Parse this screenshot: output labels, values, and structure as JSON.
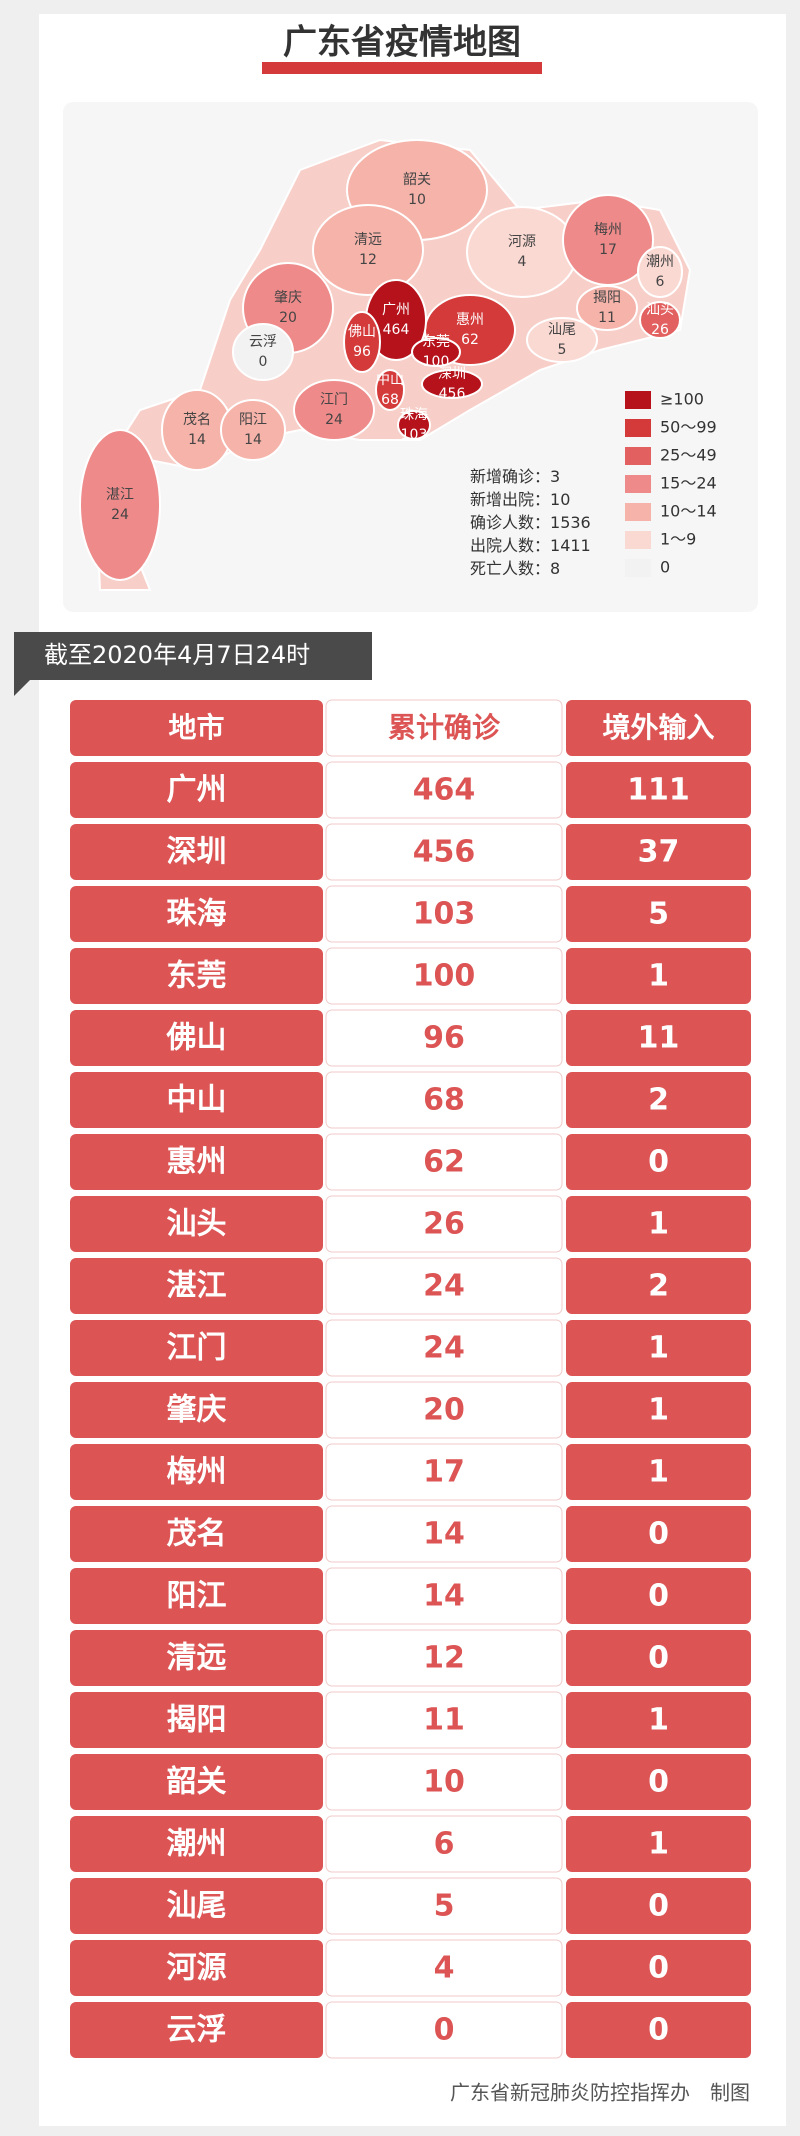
{
  "title": "广东省疫情地图",
  "map": {
    "regions": [
      {
        "name": "韶关",
        "value": 10,
        "color": "#f5b3aa"
      },
      {
        "name": "清远",
        "value": 12,
        "color": "#f5b3aa"
      },
      {
        "name": "河源",
        "value": 4,
        "color": "#fbd9d3"
      },
      {
        "name": "梅州",
        "value": 17,
        "color": "#ee8a8a"
      },
      {
        "name": "潮州",
        "value": 6,
        "color": "#fbd9d3"
      },
      {
        "name": "揭阳",
        "value": 11,
        "color": "#f5b3aa"
      },
      {
        "name": "汕头",
        "value": 26,
        "color": "#e36060"
      },
      {
        "name": "汕尾",
        "value": 5,
        "color": "#fbd9d3"
      },
      {
        "name": "惠州",
        "value": 62,
        "color": "#d43a3a"
      },
      {
        "name": "广州",
        "value": 464,
        "color": "#b5121b"
      },
      {
        "name": "东莞",
        "value": 100,
        "color": "#b5121b"
      },
      {
        "name": "深圳",
        "value": 456,
        "color": "#b5121b"
      },
      {
        "name": "佛山",
        "value": 96,
        "color": "#d43a3a"
      },
      {
        "name": "中山",
        "value": 68,
        "color": "#d43a3a"
      },
      {
        "name": "珠海",
        "value": 103,
        "color": "#b5121b"
      },
      {
        "name": "江门",
        "value": 24,
        "color": "#ee8a8a"
      },
      {
        "name": "肇庆",
        "value": 20,
        "color": "#ee8a8a"
      },
      {
        "name": "云浮",
        "value": 0,
        "color": "#f2f2f2"
      },
      {
        "name": "茂名",
        "value": 14,
        "color": "#f5b3aa"
      },
      {
        "name": "阳江",
        "value": 14,
        "color": "#f5b3aa"
      },
      {
        "name": "湛江",
        "value": 24,
        "color": "#ee8a8a"
      }
    ],
    "legend": [
      {
        "label": "≥100",
        "color": "#b5121b"
      },
      {
        "label": "50～99",
        "color": "#d43a3a"
      },
      {
        "label": "25～49",
        "color": "#e36060"
      },
      {
        "label": "15～24",
        "color": "#ee8a8a"
      },
      {
        "label": "10～14",
        "color": "#f5b3aa"
      },
      {
        "label": "1～9",
        "color": "#fbd9d3"
      },
      {
        "label": "0",
        "color": "#f2f2f2"
      }
    ],
    "stats": [
      {
        "label": "新增确诊：",
        "value": 3
      },
      {
        "label": "新增出院：",
        "value": 10
      },
      {
        "label": "确诊人数：",
        "value": 1536
      },
      {
        "label": "出院人数：",
        "value": 1411
      },
      {
        "label": "死亡人数：",
        "value": 8
      }
    ]
  },
  "date": "截至2020年4月7日24时",
  "table": {
    "header": [
      "地市",
      "累计确诊",
      "境外输入"
    ],
    "rows": [
      [
        "广州",
        464,
        111
      ],
      [
        "深圳",
        456,
        37
      ],
      [
        "珠海",
        103,
        5
      ],
      [
        "东莞",
        100,
        1
      ],
      [
        "佛山",
        96,
        11
      ],
      [
        "中山",
        68,
        2
      ],
      [
        "惠州",
        62,
        0
      ],
      [
        "汕头",
        26,
        1
      ],
      [
        "湛江",
        24,
        2
      ],
      [
        "江门",
        24,
        1
      ],
      [
        "肇庆",
        20,
        1
      ],
      [
        "梅州",
        17,
        1
      ],
      [
        "茂名",
        14,
        0
      ],
      [
        "阳江",
        14,
        0
      ],
      [
        "清远",
        12,
        0
      ],
      [
        "揭阳",
        11,
        1
      ],
      [
        "韶关",
        10,
        0
      ],
      [
        "潮州",
        6,
        1
      ],
      [
        "汕尾",
        5,
        0
      ],
      [
        "河源",
        4,
        0
      ],
      [
        "云浮",
        0,
        0
      ]
    ]
  },
  "footer": "广东省新冠肺炎防控指挥办　制图"
}
